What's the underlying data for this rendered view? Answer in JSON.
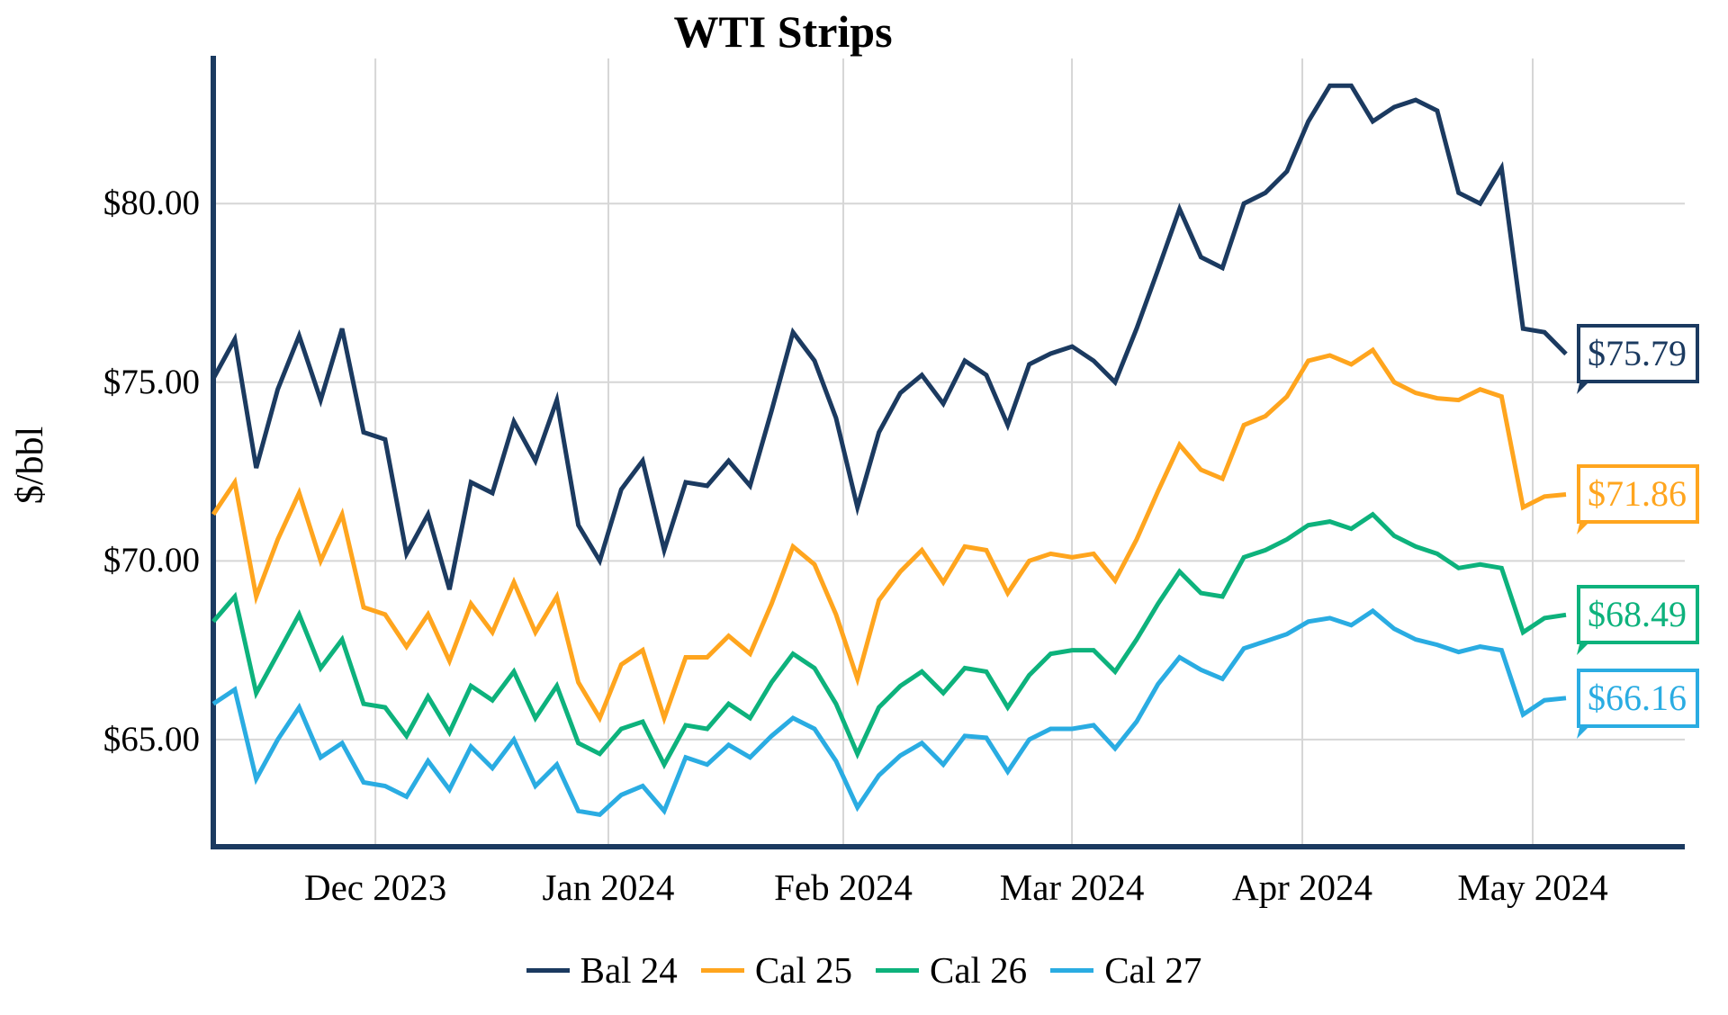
{
  "title": "WTI Strips",
  "chart_data": {
    "type": "line",
    "title": "WTI Strips",
    "xlabel": "",
    "ylabel": "$/bbl",
    "grid": true,
    "legend_position": "bottom",
    "ylim": [
      62.0,
      84.06
    ],
    "y_ticks": [
      {
        "value": 65,
        "label": "$65.00"
      },
      {
        "value": 70,
        "label": "$70.00"
      },
      {
        "value": 75,
        "label": "$75.00"
      },
      {
        "value": 80,
        "label": "$80.00"
      }
    ],
    "x_ticks": [
      {
        "pos": 7.55,
        "label": "Dec 2023"
      },
      {
        "pos": 18.4,
        "label": "Jan 2024"
      },
      {
        "pos": 29.34,
        "label": "Feb 2024"
      },
      {
        "pos": 39.99,
        "label": "Mar 2024"
      },
      {
        "pos": 50.72,
        "label": "Apr 2024"
      },
      {
        "pos": 61.45,
        "label": "May 2024"
      }
    ],
    "grid_color": "#D6D6D6",
    "axis_color": "#1B3A60",
    "series": [
      {
        "name": "Bal 24",
        "color": "#1B3A60",
        "end_label": "$75.79",
        "end_value": 75.79,
        "values": [
          75.1,
          76.2,
          72.6,
          74.8,
          76.3,
          74.5,
          76.5,
          73.6,
          73.4,
          70.2,
          71.3,
          69.2,
          72.2,
          71.9,
          73.9,
          72.8,
          74.5,
          71.0,
          70.0,
          72.0,
          72.8,
          70.3,
          72.2,
          72.1,
          72.8,
          72.1,
          74.2,
          76.4,
          75.6,
          74.0,
          71.5,
          73.6,
          74.7,
          75.2,
          74.4,
          75.6,
          75.2,
          73.8,
          75.5,
          75.8,
          76.0,
          75.6,
          75.0,
          76.5,
          78.15,
          79.85,
          78.5,
          78.2,
          80.0,
          80.3,
          80.9,
          82.3,
          83.3,
          83.3,
          82.3,
          82.7,
          82.9,
          82.6,
          80.3,
          80.0,
          81.0,
          76.5,
          76.4,
          75.79
        ]
      },
      {
        "name": "Cal 25",
        "color": "#FFA51E",
        "end_label": "$71.86",
        "end_value": 71.86,
        "values": [
          71.3,
          72.2,
          69.0,
          70.6,
          71.9,
          70.0,
          71.3,
          68.7,
          68.5,
          67.6,
          68.5,
          67.2,
          68.8,
          68.0,
          69.4,
          68.0,
          69.0,
          66.6,
          65.6,
          67.1,
          67.5,
          65.6,
          67.3,
          67.3,
          67.9,
          67.4,
          68.8,
          70.4,
          69.9,
          68.5,
          66.7,
          68.9,
          69.7,
          70.3,
          69.4,
          70.4,
          70.3,
          69.1,
          70.0,
          70.2,
          70.1,
          70.2,
          69.45,
          70.6,
          71.95,
          73.25,
          72.55,
          72.3,
          73.8,
          74.05,
          74.6,
          75.6,
          75.75,
          75.5,
          75.9,
          75.0,
          74.7,
          74.55,
          74.5,
          74.8,
          74.6,
          71.5,
          71.8,
          71.86
        ]
      },
      {
        "name": "Cal 26",
        "color": "#0DB27C",
        "end_label": "$68.49",
        "end_value": 68.49,
        "values": [
          68.3,
          69.0,
          66.3,
          67.4,
          68.5,
          67.0,
          67.8,
          66.0,
          65.9,
          65.1,
          66.2,
          65.2,
          66.5,
          66.1,
          66.9,
          65.6,
          66.5,
          64.9,
          64.6,
          65.3,
          65.5,
          64.3,
          65.4,
          65.3,
          66.0,
          65.6,
          66.6,
          67.4,
          67.0,
          66.0,
          64.6,
          65.9,
          66.5,
          66.9,
          66.3,
          67.0,
          66.9,
          65.9,
          66.8,
          67.4,
          67.5,
          67.5,
          66.9,
          67.8,
          68.8,
          69.7,
          69.1,
          69.0,
          70.1,
          70.3,
          70.6,
          71.0,
          71.1,
          70.9,
          71.3,
          70.7,
          70.4,
          70.2,
          69.8,
          69.9,
          69.8,
          68.0,
          68.4,
          68.49
        ]
      },
      {
        "name": "Cal 27",
        "color": "#2AACE2",
        "end_label": "$66.16",
        "end_value": 66.16,
        "values": [
          66.0,
          66.4,
          63.9,
          65.0,
          65.9,
          64.5,
          64.9,
          63.8,
          63.7,
          63.4,
          64.4,
          63.6,
          64.8,
          64.2,
          65.0,
          63.7,
          64.3,
          63.0,
          62.9,
          63.45,
          63.7,
          63.0,
          64.5,
          64.3,
          64.85,
          64.5,
          65.1,
          65.6,
          65.3,
          64.4,
          63.1,
          64.0,
          64.55,
          64.9,
          64.3,
          65.1,
          65.05,
          64.1,
          65.0,
          65.3,
          65.3,
          65.4,
          64.75,
          65.5,
          66.55,
          67.3,
          66.95,
          66.7,
          67.55,
          67.75,
          67.95,
          68.3,
          68.4,
          68.2,
          68.6,
          68.1,
          67.8,
          67.65,
          67.45,
          67.6,
          67.5,
          65.7,
          66.1,
          66.16
        ]
      }
    ]
  }
}
